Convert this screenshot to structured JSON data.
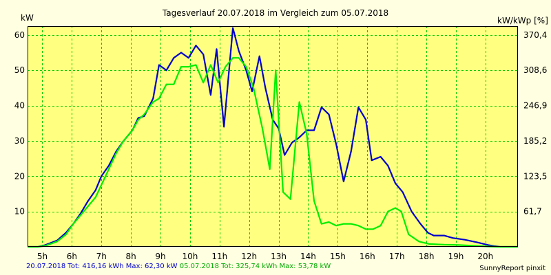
{
  "colors": {
    "background": "#ffffe1",
    "plot_area": "#ffff80",
    "grid": "#00cc00",
    "series1": "#0000cc",
    "series2": "#00ee00"
  },
  "chart_data": {
    "type": "line",
    "title": "Tagesverlauf 20.07.2018 im Vergleich zum 05.07.2018",
    "ylabel_left": "kW",
    "ylabel_right": "kW/kWp [%]",
    "x_ticks": [
      "5h",
      "6h",
      "7h",
      "8h",
      "9h",
      "10h",
      "11h",
      "12h",
      "13h",
      "14h",
      "15h",
      "16h",
      "17h",
      "18h",
      "19h",
      "20h"
    ],
    "y_ticks": [
      10,
      20,
      30,
      40,
      50,
      60
    ],
    "y2_ticks": [
      "61,7",
      "123,5",
      "185,2",
      "246,9",
      "308,6",
      "370,4"
    ],
    "xlim": [
      4.5,
      21.1
    ],
    "ylim": [
      0,
      62.5
    ],
    "grid": true,
    "series": [
      {
        "name": "20.07.2018",
        "color": "#0000cc",
        "points": [
          [
            4.5,
            0
          ],
          [
            4.85,
            0
          ],
          [
            5.1,
            0.5
          ],
          [
            5.5,
            1.8
          ],
          [
            5.8,
            4
          ],
          [
            6.05,
            6.5
          ],
          [
            6.3,
            9.5
          ],
          [
            6.55,
            13
          ],
          [
            6.8,
            16
          ],
          [
            7.0,
            20
          ],
          [
            7.25,
            23
          ],
          [
            7.5,
            27
          ],
          [
            7.75,
            30
          ],
          [
            8.05,
            33
          ],
          [
            8.25,
            36.5
          ],
          [
            8.45,
            37
          ],
          [
            8.75,
            42
          ],
          [
            8.95,
            51.5
          ],
          [
            9.2,
            50
          ],
          [
            9.45,
            53.5
          ],
          [
            9.7,
            55
          ],
          [
            9.95,
            53.5
          ],
          [
            10.2,
            57
          ],
          [
            10.45,
            54.5
          ],
          [
            10.7,
            43
          ],
          [
            10.9,
            56
          ],
          [
            11.15,
            34
          ],
          [
            11.45,
            62
          ],
          [
            11.65,
            55.5
          ],
          [
            11.9,
            50
          ],
          [
            12.1,
            44
          ],
          [
            12.35,
            54
          ],
          [
            12.55,
            45
          ],
          [
            12.8,
            36
          ],
          [
            13.0,
            33.5
          ],
          [
            13.2,
            26
          ],
          [
            13.45,
            29.5
          ],
          [
            13.7,
            31
          ],
          [
            13.95,
            33
          ],
          [
            14.2,
            33
          ],
          [
            14.45,
            39.5
          ],
          [
            14.7,
            37.5
          ],
          [
            14.95,
            29
          ],
          [
            15.2,
            18.5
          ],
          [
            15.45,
            27
          ],
          [
            15.7,
            39.5
          ],
          [
            15.95,
            36
          ],
          [
            16.15,
            24.5
          ],
          [
            16.45,
            25.5
          ],
          [
            16.7,
            23
          ],
          [
            16.95,
            18
          ],
          [
            17.2,
            15.5
          ],
          [
            17.5,
            10
          ],
          [
            17.8,
            6.5
          ],
          [
            18.05,
            4
          ],
          [
            18.25,
            3.2
          ],
          [
            18.6,
            3.2
          ],
          [
            18.9,
            2.5
          ],
          [
            19.3,
            2
          ],
          [
            19.7,
            1.3
          ],
          [
            20.1,
            0.5
          ],
          [
            20.3,
            0.2
          ],
          [
            20.5,
            0
          ],
          [
            21.1,
            0
          ]
        ]
      },
      {
        "name": "05.07.2018",
        "color": "#00ee00",
        "points": [
          [
            4.5,
            0
          ],
          [
            4.85,
            0
          ],
          [
            5.1,
            0.3
          ],
          [
            5.5,
            1.5
          ],
          [
            5.8,
            3.5
          ],
          [
            6.05,
            6.5
          ],
          [
            6.3,
            9
          ],
          [
            6.55,
            11.5
          ],
          [
            6.8,
            14
          ],
          [
            7.0,
            17.5
          ],
          [
            7.25,
            22
          ],
          [
            7.5,
            26.5
          ],
          [
            7.75,
            30
          ],
          [
            8.05,
            33
          ],
          [
            8.25,
            36
          ],
          [
            8.45,
            37.5
          ],
          [
            8.75,
            41
          ],
          [
            8.95,
            42
          ],
          [
            9.2,
            46
          ],
          [
            9.45,
            46
          ],
          [
            9.7,
            51
          ],
          [
            9.95,
            51
          ],
          [
            10.2,
            51.5
          ],
          [
            10.45,
            46.5
          ],
          [
            10.7,
            51.5
          ],
          [
            10.95,
            46.5
          ],
          [
            11.2,
            51
          ],
          [
            11.45,
            53.5
          ],
          [
            11.65,
            53.5
          ],
          [
            11.9,
            51
          ],
          [
            12.15,
            45
          ],
          [
            12.45,
            33.5
          ],
          [
            12.7,
            22
          ],
          [
            12.9,
            50
          ],
          [
            13.15,
            15.5
          ],
          [
            13.4,
            13.5
          ],
          [
            13.7,
            41
          ],
          [
            13.95,
            32
          ],
          [
            14.2,
            13
          ],
          [
            14.45,
            6.5
          ],
          [
            14.7,
            7
          ],
          [
            14.95,
            6
          ],
          [
            15.2,
            6.5
          ],
          [
            15.45,
            6.5
          ],
          [
            15.7,
            6
          ],
          [
            15.95,
            5
          ],
          [
            16.2,
            5
          ],
          [
            16.45,
            6
          ],
          [
            16.7,
            10
          ],
          [
            16.95,
            11
          ],
          [
            17.15,
            10
          ],
          [
            17.4,
            3.5
          ],
          [
            17.75,
            1.5
          ],
          [
            18.1,
            0.8
          ],
          [
            18.6,
            0.6
          ],
          [
            19.1,
            0.5
          ],
          [
            19.6,
            0.3
          ],
          [
            20.1,
            0.1
          ],
          [
            20.4,
            0
          ],
          [
            21.1,
            0
          ]
        ]
      }
    ]
  },
  "footer": {
    "s1_text": "20.07.2018 Tot: 416,16 kWh Max: 62,30 kW",
    "s2_text": "05.07.2018 Tot: 325,74 kWh Max: 53,78 kW",
    "credit": "SunnyReport pinxit"
  }
}
